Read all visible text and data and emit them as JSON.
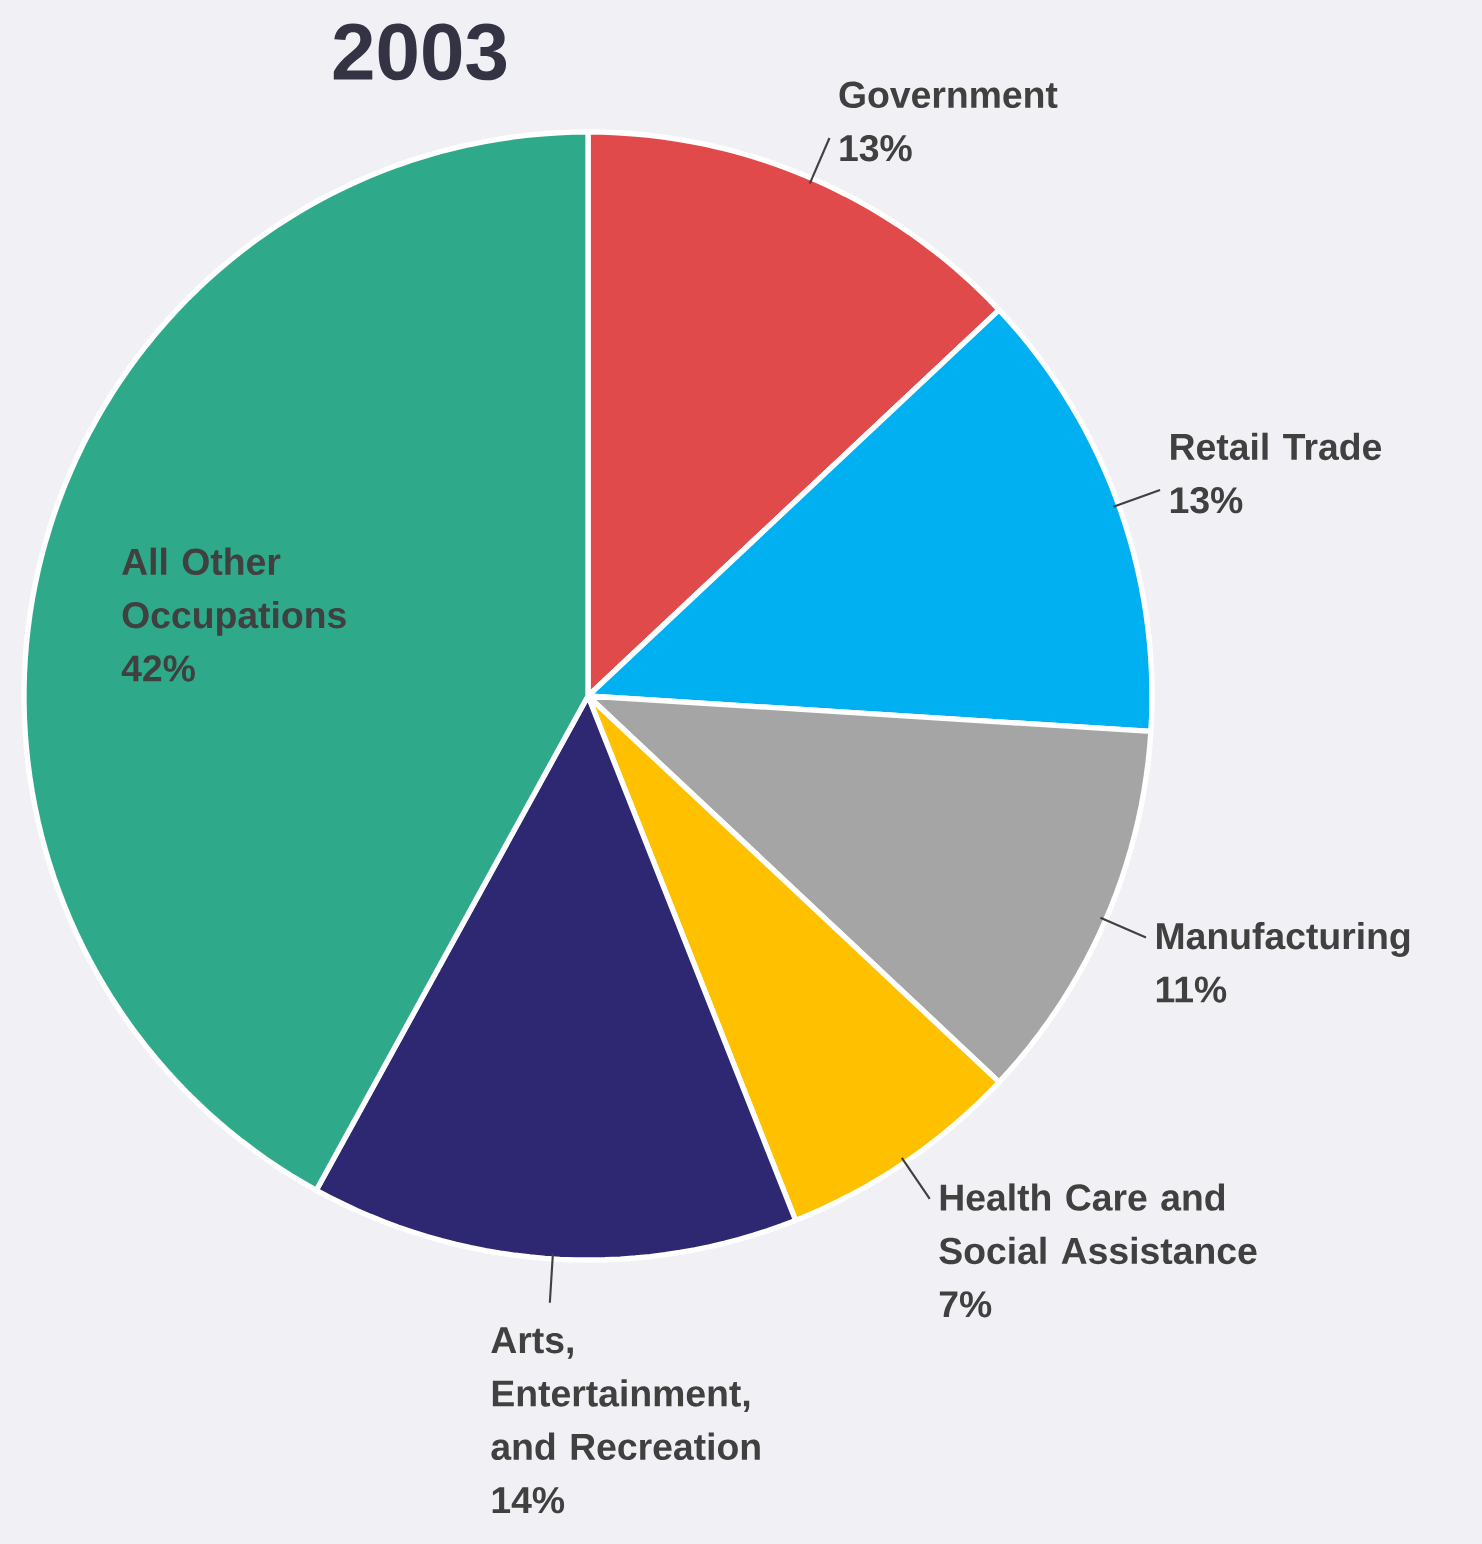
{
  "chart_data": {
    "type": "pie",
    "title": "2003",
    "categories": [
      "Government",
      "Retail Trade",
      "Manufacturing",
      "Health Care and Social Assistance",
      "Arts, Entertainment, and Recreation",
      "All Other Occupations"
    ],
    "values": [
      13,
      13,
      11,
      7,
      14,
      42
    ],
    "value_labels": [
      "13%",
      "13%",
      "11%",
      "7%",
      "14%",
      "42%"
    ],
    "colors": [
      "#e04a4b",
      "#00b0f0",
      "#a5a5a5",
      "#ffc000",
      "#2e2872",
      "#2eaa8a"
    ]
  }
}
